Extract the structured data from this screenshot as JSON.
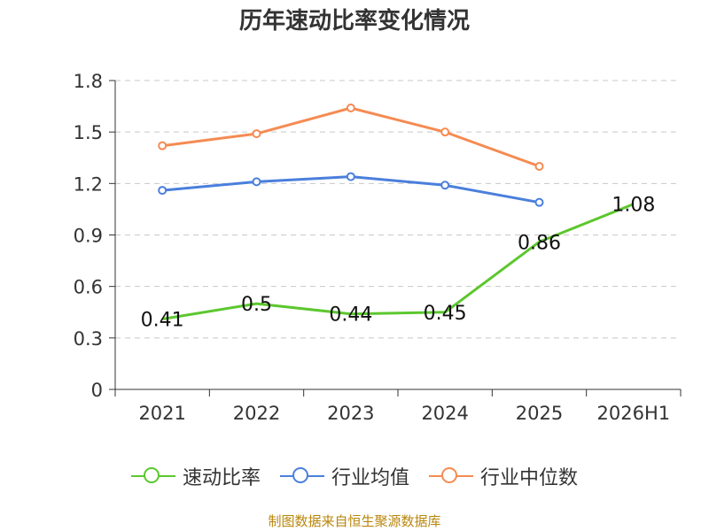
{
  "chart_data": {
    "type": "line",
    "title": "历年速动比率变化情况",
    "xlabel": "",
    "ylabel": "",
    "categories": [
      "2021",
      "2022",
      "2023",
      "2024",
      "2025",
      "2026H1"
    ],
    "ylim": [
      0,
      1.8
    ],
    "yticks": [
      "0",
      "0.3",
      "0.6",
      "0.9",
      "1.2",
      "1.5",
      "1.8"
    ],
    "grid": true,
    "legend_position": "bottom",
    "series": [
      {
        "name": "速动比率",
        "color": "#5cc72e",
        "values": [
          0.41,
          0.5,
          0.44,
          0.45,
          0.86,
          1.08
        ],
        "data_labels": [
          "0.41",
          "0.5",
          "0.44",
          "0.45",
          "0.86",
          "1.08"
        ],
        "show_markers": false
      },
      {
        "name": "行业均值",
        "color": "#4a7fdc",
        "values": [
          1.16,
          1.21,
          1.24,
          1.19,
          1.09,
          null
        ],
        "show_markers": true
      },
      {
        "name": "行业中位数",
        "color": "#f58b52",
        "values": [
          1.42,
          1.49,
          1.64,
          1.5,
          1.3,
          null
        ],
        "show_markers": true
      }
    ]
  },
  "source_text": "制图数据来自恒生聚源数据库"
}
